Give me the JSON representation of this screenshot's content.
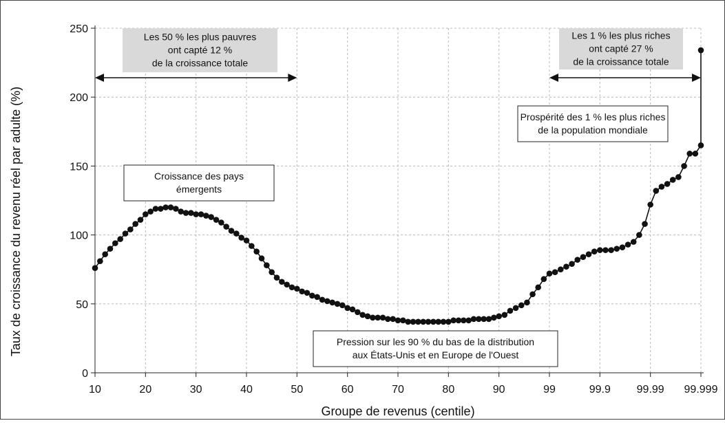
{
  "chart_data": {
    "type": "line",
    "title": "",
    "xlabel": "Groupe de revenus (centile)",
    "ylabel": "Taux de croissance du revenu réel par adulte (%)",
    "ylim": [
      0,
      250
    ],
    "yticks": [
      0,
      50,
      100,
      150,
      200,
      250
    ],
    "xticks": [
      {
        "label": "10",
        "x": 10
      },
      {
        "label": "20",
        "x": 20
      },
      {
        "label": "30",
        "x": 30
      },
      {
        "label": "40",
        "x": 40
      },
      {
        "label": "50",
        "x": 50
      },
      {
        "label": "60",
        "x": 60
      },
      {
        "label": "70",
        "x": 70
      },
      {
        "label": "80",
        "x": 80
      },
      {
        "label": "90",
        "x": 90
      },
      {
        "label": "99",
        "x": 99
      },
      {
        "label": "99.9",
        "x": 99.9
      },
      {
        "label": "99.99",
        "x": 99.99
      },
      {
        "label": "99.999",
        "x": 99.999
      }
    ],
    "grid": true,
    "series": [
      {
        "points": [
          [
            10,
            76
          ],
          [
            11,
            81
          ],
          [
            12,
            86
          ],
          [
            13,
            90
          ],
          [
            14,
            94
          ],
          [
            15,
            97
          ],
          [
            16,
            101
          ],
          [
            17,
            104
          ],
          [
            18,
            108
          ],
          [
            19,
            111
          ],
          [
            20,
            115
          ],
          [
            21,
            117
          ],
          [
            22,
            119
          ],
          [
            23,
            119
          ],
          [
            24,
            120
          ],
          [
            25,
            120
          ],
          [
            26,
            119
          ],
          [
            27,
            117
          ],
          [
            28,
            116
          ],
          [
            29,
            116
          ],
          [
            30,
            115
          ],
          [
            31,
            115
          ],
          [
            32,
            114
          ],
          [
            33,
            113
          ],
          [
            34,
            111
          ],
          [
            35,
            109
          ],
          [
            36,
            106
          ],
          [
            37,
            103
          ],
          [
            38,
            101
          ],
          [
            39,
            98
          ],
          [
            40,
            96
          ],
          [
            41,
            92
          ],
          [
            42,
            88
          ],
          [
            43,
            83
          ],
          [
            44,
            78
          ],
          [
            45,
            73
          ],
          [
            46,
            69
          ],
          [
            47,
            66
          ],
          [
            48,
            64
          ],
          [
            49,
            62
          ],
          [
            50,
            61
          ],
          [
            51,
            59
          ],
          [
            52,
            58
          ],
          [
            53,
            56
          ],
          [
            54,
            55
          ],
          [
            55,
            53
          ],
          [
            56,
            52
          ],
          [
            57,
            51
          ],
          [
            58,
            50
          ],
          [
            59,
            49
          ],
          [
            60,
            47
          ],
          [
            61,
            46
          ],
          [
            62,
            44
          ],
          [
            63,
            42
          ],
          [
            64,
            41
          ],
          [
            65,
            40
          ],
          [
            66,
            40
          ],
          [
            67,
            40
          ],
          [
            68,
            39
          ],
          [
            69,
            39
          ],
          [
            70,
            38
          ],
          [
            71,
            38
          ],
          [
            72,
            37
          ],
          [
            73,
            37
          ],
          [
            74,
            37
          ],
          [
            75,
            37
          ],
          [
            76,
            37
          ],
          [
            77,
            37
          ],
          [
            78,
            37
          ],
          [
            79,
            37
          ],
          [
            80,
            37
          ],
          [
            81,
            38
          ],
          [
            82,
            38
          ],
          [
            83,
            38
          ],
          [
            84,
            38
          ],
          [
            85,
            39
          ],
          [
            86,
            39
          ],
          [
            87,
            39
          ],
          [
            88,
            39
          ],
          [
            89,
            40
          ],
          [
            90,
            41
          ],
          [
            91,
            42
          ],
          [
            92,
            45
          ],
          [
            93,
            47
          ],
          [
            94,
            49
          ],
          [
            95,
            51
          ],
          [
            96,
            57
          ],
          [
            97,
            62
          ],
          [
            98,
            68
          ],
          [
            99,
            72
          ],
          [
            99.1,
            73
          ],
          [
            99.2,
            75
          ],
          [
            99.3,
            77
          ],
          [
            99.4,
            79
          ],
          [
            99.5,
            82
          ],
          [
            99.6,
            84
          ],
          [
            99.7,
            86
          ],
          [
            99.8,
            88
          ],
          [
            99.9,
            89
          ],
          [
            99.91,
            89
          ],
          [
            99.92,
            89
          ],
          [
            99.93,
            90
          ],
          [
            99.94,
            91
          ],
          [
            99.95,
            93
          ],
          [
            99.96,
            95
          ],
          [
            99.97,
            100
          ],
          [
            99.98,
            108
          ],
          [
            99.99,
            122
          ],
          [
            99.991,
            132
          ],
          [
            99.992,
            135
          ],
          [
            99.993,
            137
          ],
          [
            99.994,
            140
          ],
          [
            99.995,
            142
          ],
          [
            99.996,
            150
          ],
          [
            99.997,
            159
          ],
          [
            99.998,
            159
          ],
          [
            99.999,
            165
          ],
          [
            99.999,
            234
          ]
        ]
      }
    ],
    "annotations": [
      {
        "lines": [
          "Les 50 % les plus pauvres",
          "ont capté 12 %",
          "de la croissance totale"
        ],
        "style": "grey"
      },
      {
        "lines": [
          "Les 1 % les plus riches",
          "ont capté 27 %",
          "de la croissance totale"
        ],
        "style": "grey"
      },
      {
        "lines": [
          "Croissance des pays",
          "émergents"
        ],
        "style": "box"
      },
      {
        "lines": [
          "Prospérité des 1 % les plus riches",
          "de la population mondiale"
        ],
        "style": "box"
      },
      {
        "lines": [
          "Pression sur les 90 % du bas de la distribution",
          "aux États-Unis et en Europe de l'Ouest"
        ],
        "style": "box"
      }
    ],
    "ranges": [
      {
        "from": 10,
        "to": 50
      },
      {
        "from": 99,
        "to": 99.999
      }
    ]
  }
}
